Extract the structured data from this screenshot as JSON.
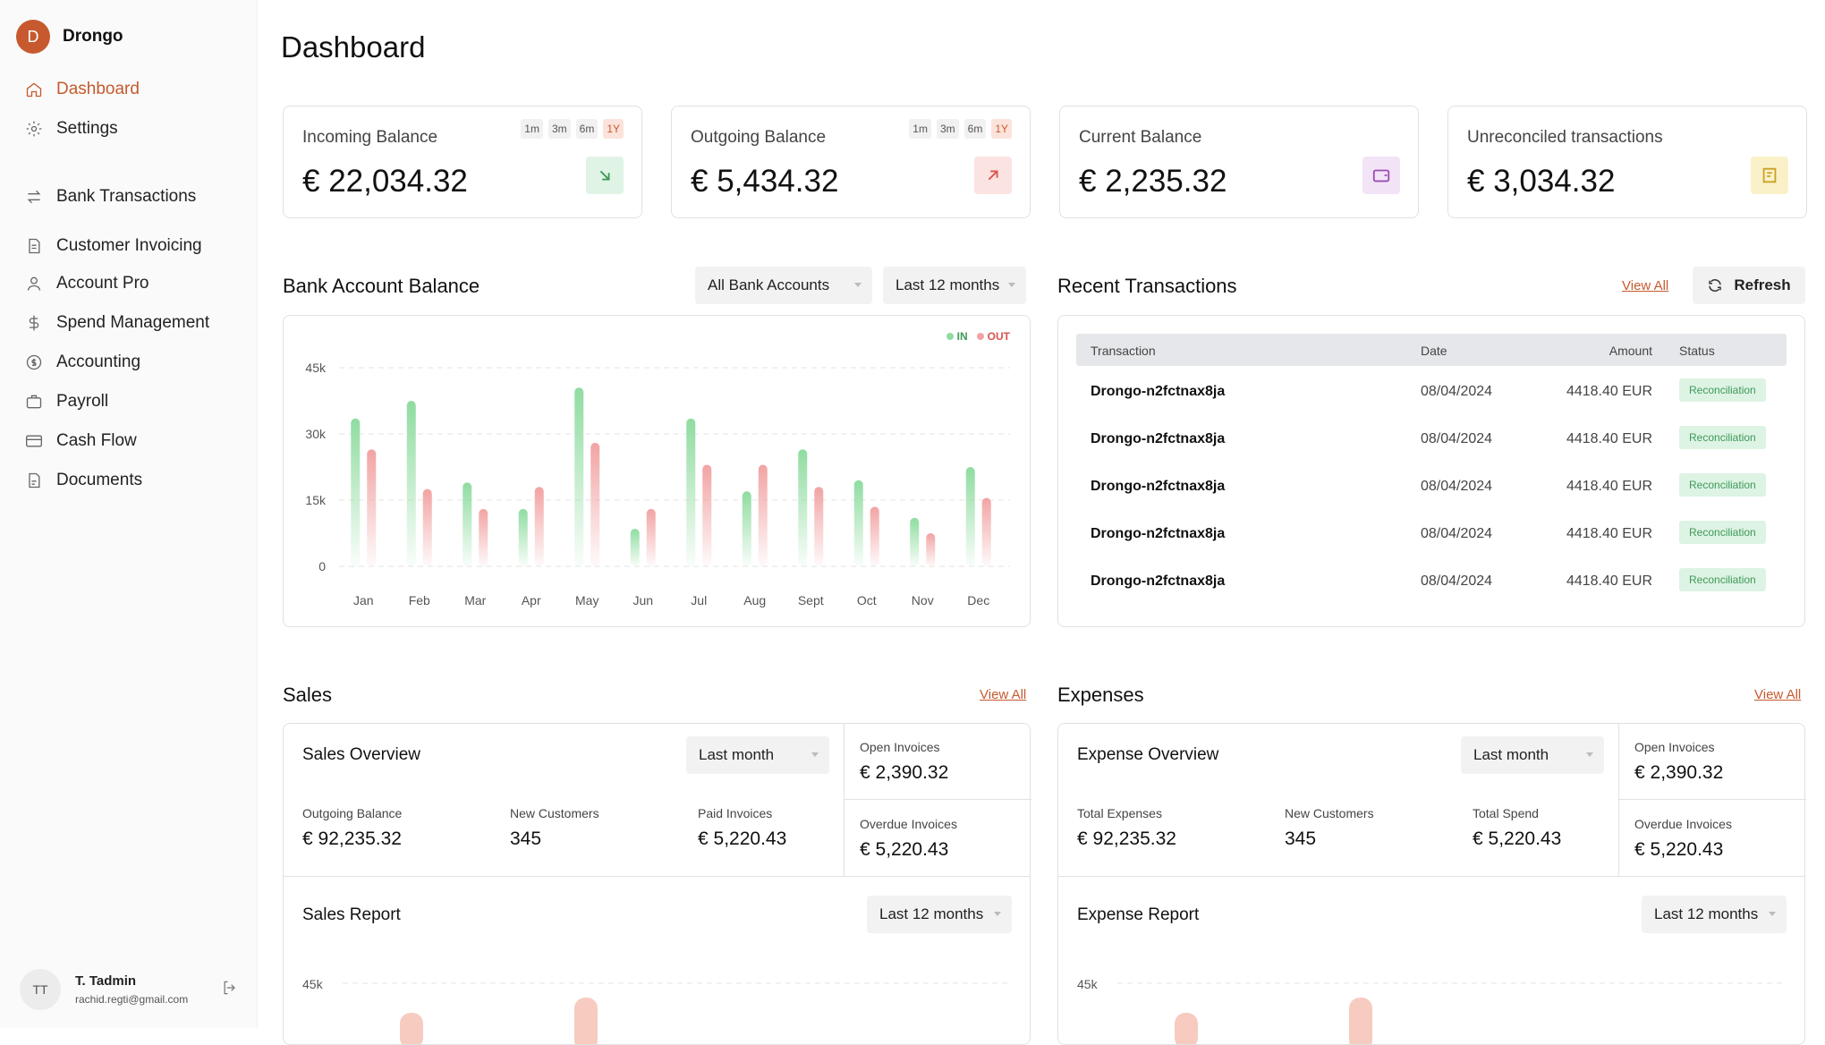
{
  "brand": {
    "initial": "D",
    "name": "Drongo"
  },
  "nav": {
    "dashboard": "Dashboard",
    "settings": "Settings",
    "bank_transactions": "Bank Transactions",
    "customer_invoicing": "Customer Invoicing",
    "account_pro": "Account Pro",
    "spend_management": "Spend Management",
    "accounting": "Accounting",
    "payroll": "Payroll",
    "cash_flow": "Cash Flow",
    "documents": "Documents"
  },
  "user": {
    "initials": "TT",
    "name": "T. Tadmin",
    "email": "rachid.regti@gmail.com"
  },
  "page_title": "Dashboard",
  "periods": [
    "1m",
    "3m",
    "6m",
    "1Y"
  ],
  "cards": {
    "incoming": {
      "label": "Incoming Balance",
      "value": "€ 22,034.32",
      "color": "#3e9a5a"
    },
    "outgoing": {
      "label": "Outgoing Balance",
      "value": "€ 5,434.32",
      "color": "#d9534f"
    },
    "current": {
      "label": "Current Balance",
      "value": "€ 2,235.32",
      "color": "#9b4fb0"
    },
    "unreconciled": {
      "label": "Unreconciled transactions",
      "value": "€ 3,034.32",
      "color": "#c9a227"
    }
  },
  "bank_balance": {
    "title": "Bank Account Balance",
    "account_filter": "All Bank Accounts",
    "period_filter": "Last 12 months"
  },
  "chart_data": {
    "type": "bar",
    "categories": [
      "Jan",
      "Feb",
      "Mar",
      "Apr",
      "May",
      "Jun",
      "Jul",
      "Aug",
      "Sept",
      "Oct",
      "Nov",
      "Dec"
    ],
    "series": [
      {
        "name": "IN",
        "values": [
          33500,
          37500,
          19000,
          13000,
          40500,
          8500,
          33500,
          17000,
          26500,
          19500,
          11000,
          22500
        ],
        "color": "#8fdca0"
      },
      {
        "name": "OUT",
        "values": [
          26500,
          17500,
          13000,
          18000,
          28000,
          13000,
          23000,
          23000,
          18000,
          13500,
          7500,
          15500
        ],
        "color": "#f2a3a3"
      }
    ],
    "y_ticks": [
      "0",
      "15k",
      "30k",
      "45k"
    ],
    "ylim": [
      0,
      45000
    ],
    "grid": true,
    "legend": "top-right"
  },
  "recent": {
    "title": "Recent Transactions",
    "view_all": "View All",
    "refresh": "Refresh",
    "headers": {
      "transaction": "Transaction",
      "date": "Date",
      "amount": "Amount",
      "status": "Status"
    },
    "rows": [
      {
        "name": "Drongo-n2fctnax8ja",
        "date": "08/04/2024",
        "amount": "4418.40 EUR",
        "status": "Reconciliation"
      },
      {
        "name": "Drongo-n2fctnax8ja",
        "date": "08/04/2024",
        "amount": "4418.40 EUR",
        "status": "Reconciliation"
      },
      {
        "name": "Drongo-n2fctnax8ja",
        "date": "08/04/2024",
        "amount": "4418.40 EUR",
        "status": "Reconciliation"
      },
      {
        "name": "Drongo-n2fctnax8ja",
        "date": "08/04/2024",
        "amount": "4418.40 EUR",
        "status": "Reconciliation"
      },
      {
        "name": "Drongo-n2fctnax8ja",
        "date": "08/04/2024",
        "amount": "4418.40 EUR",
        "status": "Reconciliation"
      }
    ]
  },
  "sales": {
    "title": "Sales",
    "view_all": "View All",
    "overview_title": "Sales Overview",
    "period": "Last month",
    "stats": [
      {
        "label": "Outgoing Balance",
        "value": "€ 92,235.32"
      },
      {
        "label": "New Customers",
        "value": "345"
      },
      {
        "label": "Paid Invoices",
        "value": "€ 5,220.43"
      }
    ],
    "open_label": "Open Invoices",
    "open_value": "€ 2,390.32",
    "overdue_label": "Overdue Invoices",
    "overdue_value": "€ 5,220.43",
    "report_title": "Sales Report",
    "report_period": "Last 12 months",
    "report_tick": "45k"
  },
  "expenses": {
    "title": "Expenses",
    "view_all": "View All",
    "overview_title": "Expense Overview",
    "period": "Last month",
    "stats": [
      {
        "label": "Total Expenses",
        "value": "€ 92,235.32"
      },
      {
        "label": "New Customers",
        "value": "345"
      },
      {
        "label": "Total Spend",
        "value": "€ 5,220.43"
      }
    ],
    "open_label": "Open Invoices",
    "open_value": "€ 2,390.32",
    "overdue_label": "Overdue Invoices",
    "overdue_value": "€ 5,220.43",
    "report_title": "Expense Report",
    "report_period": "Last 12 months",
    "report_tick": "45k"
  }
}
